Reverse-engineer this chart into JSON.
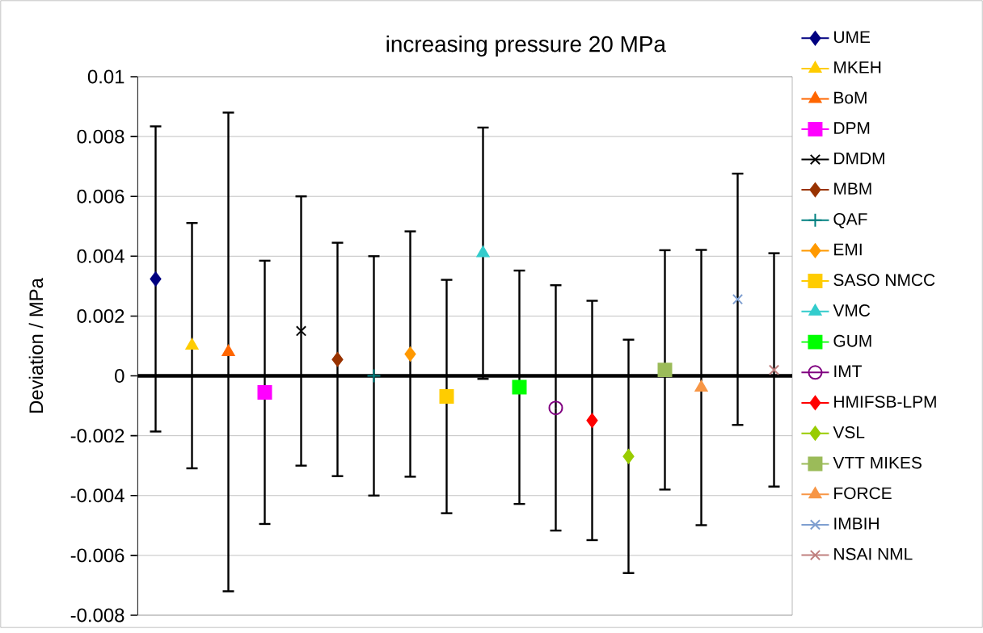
{
  "chart_data": {
    "type": "line",
    "title": "increasing pressure 20 MPa",
    "ylabel": "Deviation / MPa",
    "categories": [
      null,
      null,
      null,
      null,
      null,
      null,
      null,
      null,
      null,
      null,
      null,
      null,
      null,
      null,
      null,
      null,
      null,
      null
    ],
    "ylim": [
      -0.008,
      0.01
    ],
    "yticks": [
      0.01,
      0.008,
      0.006,
      0.004,
      0.002,
      0,
      -0.002,
      -0.004,
      -0.006,
      -0.008
    ],
    "grid": "y",
    "legend": "right",
    "tick_labels": "y",
    "line_style": "solid",
    "series": [
      {
        "name": "UME",
        "color": "#000080",
        "marker": "diamond",
        "values": [
          0.00324,
          null,
          null,
          null,
          null,
          null,
          null,
          null,
          null,
          null,
          null,
          null,
          null,
          null,
          null,
          null,
          null,
          null
        ],
        "errors": [
          0.0051,
          null,
          null,
          null,
          null,
          null,
          null,
          null,
          null,
          null,
          null,
          null,
          null,
          null,
          null,
          null,
          null,
          null
        ]
      },
      {
        "name": "MKEH",
        "color": "#FFCC00",
        "marker": "triangle",
        "values": [
          null,
          0.00101,
          null,
          null,
          null,
          null,
          null,
          null,
          null,
          null,
          null,
          null,
          null,
          null,
          null,
          null,
          null,
          null
        ],
        "errors": [
          null,
          0.0041,
          null,
          null,
          null,
          null,
          null,
          null,
          null,
          null,
          null,
          null,
          null,
          null,
          null,
          null,
          null,
          null
        ]
      },
      {
        "name": "BoM",
        "color": "#FF6600",
        "marker": "triangle",
        "values": [
          null,
          null,
          0.0008,
          null,
          null,
          null,
          null,
          null,
          null,
          null,
          null,
          null,
          null,
          null,
          null,
          null,
          null,
          null
        ],
        "errors": [
          null,
          null,
          0.008,
          null,
          null,
          null,
          null,
          null,
          null,
          null,
          null,
          null,
          null,
          null,
          null,
          null,
          null,
          null
        ]
      },
      {
        "name": "DPM",
        "color": "#FF00FF",
        "marker": "square",
        "values": [
          null,
          null,
          null,
          -0.00055,
          null,
          null,
          null,
          null,
          null,
          null,
          null,
          null,
          null,
          null,
          null,
          null,
          null,
          null
        ],
        "errors": [
          null,
          null,
          null,
          0.0044,
          null,
          null,
          null,
          null,
          null,
          null,
          null,
          null,
          null,
          null,
          null,
          null,
          null,
          null
        ]
      },
      {
        "name": "DMDM",
        "color": "#000000",
        "marker": "cross",
        "values": [
          null,
          null,
          null,
          null,
          0.0015,
          null,
          null,
          null,
          null,
          null,
          null,
          null,
          null,
          null,
          null,
          null,
          null,
          null
        ],
        "errors": [
          null,
          null,
          null,
          null,
          0.0045,
          null,
          null,
          null,
          null,
          null,
          null,
          null,
          null,
          null,
          null,
          null,
          null,
          null
        ]
      },
      {
        "name": "MBM",
        "color": "#993300",
        "marker": "diamond",
        "values": [
          null,
          null,
          null,
          null,
          null,
          0.00055,
          null,
          null,
          null,
          null,
          null,
          null,
          null,
          null,
          null,
          null,
          null,
          null
        ],
        "errors": [
          null,
          null,
          null,
          null,
          null,
          0.0039,
          null,
          null,
          null,
          null,
          null,
          null,
          null,
          null,
          null,
          null,
          null,
          null
        ]
      },
      {
        "name": "QAF",
        "color": "#008080",
        "marker": "plus",
        "values": [
          null,
          null,
          null,
          null,
          null,
          null,
          0.0,
          null,
          null,
          null,
          null,
          null,
          null,
          null,
          null,
          null,
          null,
          null
        ],
        "errors": [
          null,
          null,
          null,
          null,
          null,
          null,
          0.004,
          null,
          null,
          null,
          null,
          null,
          null,
          null,
          null,
          null,
          null,
          null
        ]
      },
      {
        "name": "EMI",
        "color": "#FF9900",
        "marker": "diamond",
        "values": [
          null,
          null,
          null,
          null,
          null,
          null,
          null,
          0.00073,
          null,
          null,
          null,
          null,
          null,
          null,
          null,
          null,
          null,
          null
        ],
        "errors": [
          null,
          null,
          null,
          null,
          null,
          null,
          null,
          0.0041,
          null,
          null,
          null,
          null,
          null,
          null,
          null,
          null,
          null,
          null
        ]
      },
      {
        "name": "SASO NMCC",
        "color": "#FFCC00",
        "marker": "square",
        "values": [
          null,
          null,
          null,
          null,
          null,
          null,
          null,
          null,
          -0.00069,
          null,
          null,
          null,
          null,
          null,
          null,
          null,
          null,
          null
        ],
        "errors": [
          null,
          null,
          null,
          null,
          null,
          null,
          null,
          null,
          0.0039,
          null,
          null,
          null,
          null,
          null,
          null,
          null,
          null,
          null
        ]
      },
      {
        "name": "VMC",
        "color": "#33CCCC",
        "marker": "triangle",
        "values": [
          null,
          null,
          null,
          null,
          null,
          null,
          null,
          null,
          null,
          0.0041,
          null,
          null,
          null,
          null,
          null,
          null,
          null,
          null
        ],
        "errors": [
          null,
          null,
          null,
          null,
          null,
          null,
          null,
          null,
          null,
          0.0042,
          null,
          null,
          null,
          null,
          null,
          null,
          null,
          null
        ]
      },
      {
        "name": "GUM",
        "color": "#00FF00",
        "marker": "square",
        "values": [
          null,
          null,
          null,
          null,
          null,
          null,
          null,
          null,
          null,
          null,
          -0.00038,
          null,
          null,
          null,
          null,
          null,
          null,
          null
        ],
        "errors": [
          null,
          null,
          null,
          null,
          null,
          null,
          null,
          null,
          null,
          null,
          0.0039,
          null,
          null,
          null,
          null,
          null,
          null,
          null
        ]
      },
      {
        "name": "IMT",
        "color": "#800080",
        "marker": "circle",
        "values": [
          null,
          null,
          null,
          null,
          null,
          null,
          null,
          null,
          null,
          null,
          null,
          -0.00107,
          null,
          null,
          null,
          null,
          null,
          null
        ],
        "errors": [
          null,
          null,
          null,
          null,
          null,
          null,
          null,
          null,
          null,
          null,
          null,
          0.0041,
          null,
          null,
          null,
          null,
          null,
          null
        ]
      },
      {
        "name": "HMIFSB-LPM",
        "color": "#FF0000",
        "marker": "diamond",
        "values": [
          null,
          null,
          null,
          null,
          null,
          null,
          null,
          null,
          null,
          null,
          null,
          null,
          -0.00149,
          null,
          null,
          null,
          null,
          null
        ],
        "errors": [
          null,
          null,
          null,
          null,
          null,
          null,
          null,
          null,
          null,
          null,
          null,
          null,
          0.004,
          null,
          null,
          null,
          null,
          null
        ]
      },
      {
        "name": "VSL",
        "color": "#99CC00",
        "marker": "diamond",
        "values": [
          null,
          null,
          null,
          null,
          null,
          null,
          null,
          null,
          null,
          null,
          null,
          null,
          null,
          -0.00269,
          null,
          null,
          null,
          null
        ],
        "errors": [
          null,
          null,
          null,
          null,
          null,
          null,
          null,
          null,
          null,
          null,
          null,
          null,
          null,
          0.0039,
          null,
          null,
          null,
          null
        ]
      },
      {
        "name": "VTT MIKES",
        "color": "#9BBB59",
        "marker": "square",
        "values": [
          null,
          null,
          null,
          null,
          null,
          null,
          null,
          null,
          null,
          null,
          null,
          null,
          null,
          null,
          0.0002,
          null,
          null,
          null
        ],
        "errors": [
          null,
          null,
          null,
          null,
          null,
          null,
          null,
          null,
          null,
          null,
          null,
          null,
          null,
          null,
          0.004,
          null,
          null,
          null
        ]
      },
      {
        "name": "FORCE",
        "color": "#F79646",
        "marker": "triangle",
        "values": [
          null,
          null,
          null,
          null,
          null,
          null,
          null,
          null,
          null,
          null,
          null,
          null,
          null,
          null,
          null,
          -0.00039,
          null,
          null
        ],
        "errors": [
          null,
          null,
          null,
          null,
          null,
          null,
          null,
          null,
          null,
          null,
          null,
          null,
          null,
          null,
          null,
          0.0046,
          null,
          null
        ]
      },
      {
        "name": "IMBIH",
        "color": "#7F9FD0",
        "marker": "cross",
        "values": [
          null,
          null,
          null,
          null,
          null,
          null,
          null,
          null,
          null,
          null,
          null,
          null,
          null,
          null,
          null,
          null,
          0.00256,
          null
        ],
        "errors": [
          null,
          null,
          null,
          null,
          null,
          null,
          null,
          null,
          null,
          null,
          null,
          null,
          null,
          null,
          null,
          null,
          0.0042,
          null
        ]
      },
      {
        "name": "NSAI NML",
        "color": "#C0807F",
        "marker": "cross",
        "values": [
          null,
          null,
          null,
          null,
          null,
          null,
          null,
          null,
          null,
          null,
          null,
          null,
          null,
          null,
          null,
          null,
          null,
          0.0002
        ],
        "errors": [
          null,
          null,
          null,
          null,
          null,
          null,
          null,
          null,
          null,
          null,
          null,
          null,
          null,
          null,
          null,
          null,
          null,
          0.0039
        ]
      }
    ]
  }
}
